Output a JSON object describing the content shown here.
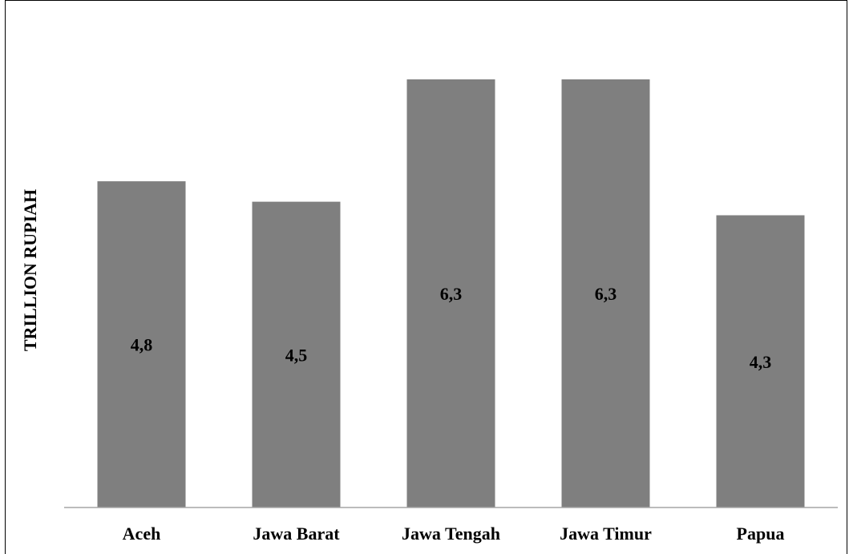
{
  "chart_data": {
    "type": "bar",
    "title": "",
    "xlabel": "",
    "ylabel": "TRILLION RUPIAH",
    "categories": [
      "Aceh",
      "Jawa Barat",
      "Jawa Tengah",
      "Jawa Timur",
      "Papua"
    ],
    "values": [
      4.8,
      4.5,
      6.3,
      6.3,
      4.3
    ],
    "data_labels": [
      "4,8",
      "4,5",
      "6,3",
      "6,3",
      "4,3"
    ],
    "ylim": [
      0,
      6.3
    ],
    "grid": false,
    "legend": "none",
    "bar_color": "#7f7f7f",
    "axis_color": "#a6a6a6"
  }
}
